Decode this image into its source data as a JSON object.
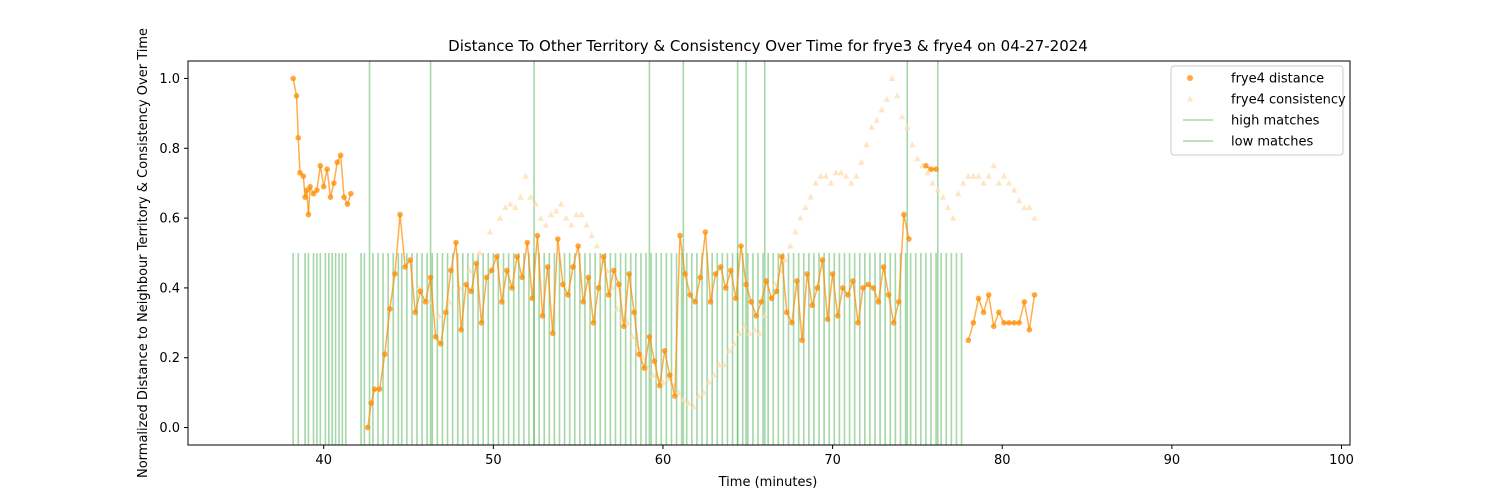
{
  "chart_data": {
    "type": "scatter",
    "title": "Distance To Other Territory & Consistency Over Time for frye3 & frye4 on 04-27-2024",
    "xlabel": "Time (minutes)",
    "ylabel": "Normalized Distance to Neighbour Territory & Consistency Over Time",
    "xlim": [
      32,
      100.5
    ],
    "ylim": [
      -0.05,
      1.05
    ],
    "xticks": [
      "40",
      "50",
      "60",
      "70",
      "80",
      "90",
      "100"
    ],
    "yticks": [
      "0.0",
      "0.2",
      "0.4",
      "0.6",
      "0.8",
      "1.0"
    ],
    "grid": false,
    "legend_position": "top-right",
    "colors": {
      "distance": "#ff8c00",
      "consistency": "#ffdcb0",
      "matches": "#4caf50"
    },
    "legend": [
      {
        "label": "frye4 distance",
        "kind": "dot-distance"
      },
      {
        "label": "frye4 consistency",
        "kind": "tri-consistency"
      },
      {
        "label": "high matches",
        "kind": "line-high"
      },
      {
        "label": "low matches",
        "kind": "line-low"
      }
    ],
    "series": [
      {
        "name": "frye4 distance",
        "x": [
          38.2,
          38.4,
          38.5,
          38.6,
          38.8,
          38.9,
          39.0,
          39.1,
          39.2,
          39.4,
          39.6,
          39.8,
          40.0,
          40.2,
          40.4,
          40.6,
          40.8,
          41.0,
          41.2,
          41.4,
          41.6,
          42.6,
          42.8,
          43.0,
          43.3,
          43.6,
          43.9,
          44.2,
          44.5,
          44.8,
          45.1,
          45.4,
          45.7,
          46.0,
          46.3,
          46.6,
          46.9,
          47.2,
          47.5,
          47.8,
          48.1,
          48.4,
          48.7,
          49.0,
          49.3,
          49.6,
          49.9,
          50.2,
          50.5,
          50.8,
          51.1,
          51.4,
          51.7,
          52.0,
          52.3,
          52.6,
          52.9,
          53.2,
          53.5,
          53.8,
          54.1,
          54.4,
          54.7,
          55.0,
          55.3,
          55.6,
          55.9,
          56.2,
          56.5,
          56.8,
          57.1,
          57.4,
          57.7,
          58.0,
          58.3,
          58.6,
          58.9,
          59.2,
          59.5,
          59.8,
          60.1,
          60.4,
          60.7,
          61.0,
          61.3,
          61.6,
          61.9,
          62.2,
          62.5,
          62.8,
          63.1,
          63.4,
          63.7,
          64.0,
          64.3,
          64.6,
          64.9,
          65.2,
          65.5,
          65.8,
          66.1,
          66.4,
          66.7,
          67.0,
          67.3,
          67.6,
          67.9,
          68.2,
          68.5,
          68.8,
          69.1,
          69.4,
          69.7,
          70.0,
          70.3,
          70.6,
          70.9,
          71.2,
          71.5,
          71.8,
          72.1,
          72.4,
          72.7,
          73.0,
          73.3,
          73.6,
          73.9,
          74.2,
          74.5,
          75.5,
          75.8,
          76.1,
          78.0,
          78.3,
          78.6,
          78.9,
          79.2,
          79.5,
          79.8,
          80.1,
          80.4,
          80.7,
          81.0,
          81.3,
          81.6,
          81.9
        ],
        "y": [
          1.0,
          0.95,
          0.83,
          0.73,
          0.72,
          0.66,
          0.68,
          0.61,
          0.69,
          0.67,
          0.68,
          0.75,
          0.69,
          0.74,
          0.66,
          0.7,
          0.76,
          0.78,
          0.66,
          0.64,
          0.67,
          0.0,
          0.07,
          0.11,
          0.11,
          0.21,
          0.34,
          0.44,
          0.61,
          0.46,
          0.48,
          0.33,
          0.39,
          0.36,
          0.43,
          0.26,
          0.24,
          0.33,
          0.45,
          0.53,
          0.28,
          0.41,
          0.39,
          0.47,
          0.3,
          0.43,
          0.45,
          0.49,
          0.36,
          0.45,
          0.4,
          0.49,
          0.43,
          0.53,
          0.37,
          0.55,
          0.32,
          0.46,
          0.27,
          0.54,
          0.41,
          0.38,
          0.46,
          0.52,
          0.36,
          0.43,
          0.3,
          0.4,
          0.49,
          0.38,
          0.45,
          0.41,
          0.29,
          0.44,
          0.33,
          0.21,
          0.17,
          0.26,
          0.19,
          0.12,
          0.22,
          0.15,
          0.09,
          0.55,
          0.44,
          0.38,
          0.36,
          0.43,
          0.56,
          0.36,
          0.44,
          0.46,
          0.4,
          0.45,
          0.37,
          0.52,
          0.41,
          0.36,
          0.32,
          0.36,
          0.42,
          0.37,
          0.39,
          0.49,
          0.33,
          0.3,
          0.42,
          0.25,
          0.44,
          0.35,
          0.4,
          0.48,
          0.31,
          0.44,
          0.32,
          0.4,
          0.38,
          0.42,
          0.3,
          0.4,
          0.41,
          0.4,
          0.36,
          0.46,
          0.38,
          0.3,
          0.36,
          0.61,
          0.54,
          0.75,
          0.74,
          0.74,
          0.25,
          0.3,
          0.37,
          0.33,
          0.38,
          0.29,
          0.33,
          0.3,
          0.3,
          0.3,
          0.3,
          0.36,
          0.28,
          0.38
        ]
      },
      {
        "name": "frye4 consistency",
        "x": [
          45.6,
          46.2,
          46.8,
          47.4,
          48.0,
          48.6,
          49.2,
          49.8,
          50.4,
          50.7,
          51.0,
          51.3,
          51.6,
          51.9,
          52.2,
          52.5,
          52.8,
          53.1,
          53.4,
          53.7,
          54.0,
          54.3,
          54.6,
          54.9,
          55.2,
          55.5,
          55.8,
          56.1,
          56.4,
          56.7,
          57.0,
          57.3,
          57.6,
          57.9,
          58.2,
          58.5,
          58.8,
          59.1,
          59.4,
          59.7,
          60.0,
          60.3,
          60.6,
          60.9,
          61.2,
          61.5,
          61.8,
          62.1,
          62.4,
          62.7,
          63.0,
          63.3,
          63.6,
          63.9,
          64.2,
          64.5,
          64.8,
          65.1,
          65.4,
          65.7,
          66.0,
          66.3,
          66.6,
          66.9,
          67.2,
          67.5,
          67.8,
          68.1,
          68.4,
          68.7,
          69.0,
          69.3,
          69.6,
          69.9,
          70.2,
          70.5,
          70.8,
          71.1,
          71.4,
          71.7,
          72.0,
          72.3,
          72.6,
          72.9,
          73.2,
          73.5,
          73.8,
          74.1,
          74.4,
          74.7,
          75.0,
          75.3,
          75.6,
          75.9,
          76.2,
          76.5,
          76.8,
          77.1,
          77.4,
          77.7,
          78.0,
          78.3,
          78.6,
          78.9,
          79.2,
          79.5,
          79.8,
          80.1,
          80.4,
          80.7,
          81.0,
          81.3,
          81.6,
          81.9
        ],
        "y": [
          0.4,
          0.36,
          0.32,
          0.36,
          0.4,
          0.45,
          0.5,
          0.56,
          0.6,
          0.63,
          0.64,
          0.63,
          0.66,
          0.72,
          0.66,
          0.64,
          0.6,
          0.58,
          0.61,
          0.62,
          0.64,
          0.6,
          0.58,
          0.61,
          0.61,
          0.58,
          0.55,
          0.52,
          0.48,
          0.45,
          0.4,
          0.34,
          0.31,
          0.3,
          0.26,
          0.23,
          0.2,
          0.17,
          0.15,
          0.14,
          0.13,
          0.14,
          0.12,
          0.1,
          0.08,
          0.07,
          0.06,
          0.09,
          0.1,
          0.13,
          0.15,
          0.18,
          0.18,
          0.22,
          0.24,
          0.27,
          0.29,
          0.27,
          0.28,
          0.27,
          0.32,
          0.37,
          0.41,
          0.45,
          0.48,
          0.52,
          0.56,
          0.6,
          0.63,
          0.66,
          0.7,
          0.72,
          0.72,
          0.7,
          0.73,
          0.73,
          0.72,
          0.7,
          0.72,
          0.76,
          0.81,
          0.86,
          0.88,
          0.91,
          0.94,
          1.0,
          0.95,
          0.89,
          0.86,
          0.81,
          0.77,
          0.75,
          0.73,
          0.7,
          0.68,
          0.66,
          0.63,
          0.6,
          0.67,
          0.7,
          0.72,
          0.72,
          0.72,
          0.7,
          0.72,
          0.75,
          0.7,
          0.72,
          0.7,
          0.68,
          0.65,
          0.63,
          0.63,
          0.6
        ]
      }
    ],
    "high_matches_x": [
      42.7,
      46.3,
      52.4,
      59.2,
      61.2,
      64.4,
      64.9,
      66.0,
      74.4,
      76.2
    ],
    "low_matches_x": [
      38.2,
      38.5,
      38.9,
      39.1,
      39.4,
      39.6,
      39.8,
      40.1,
      40.3,
      40.5,
      40.7,
      40.9,
      41.1,
      41.3,
      42.2,
      42.4,
      42.9,
      43.2,
      43.5,
      43.8,
      44.1,
      44.4,
      44.6,
      44.9,
      45.2,
      45.5,
      45.8,
      46.1,
      46.4,
      46.7,
      47.0,
      47.3,
      47.6,
      47.9,
      48.2,
      48.5,
      48.8,
      49.1,
      49.4,
      49.7,
      50.0,
      50.3,
      50.6,
      50.9,
      51.2,
      51.5,
      51.8,
      52.1,
      52.4,
      52.7,
      53.0,
      53.3,
      53.6,
      53.9,
      54.2,
      54.5,
      54.8,
      55.1,
      55.4,
      55.7,
      56.0,
      56.3,
      56.6,
      56.9,
      57.2,
      57.5,
      57.8,
      58.1,
      58.4,
      58.7,
      59.0,
      59.3,
      59.6,
      59.9,
      60.2,
      60.5,
      60.8,
      61.1,
      61.4,
      61.7,
      62.0,
      62.3,
      62.6,
      62.9,
      63.2,
      63.5,
      63.8,
      64.1,
      64.4,
      64.7,
      65.0,
      65.3,
      65.6,
      65.9,
      66.2,
      66.5,
      66.8,
      67.1,
      67.4,
      67.7,
      68.0,
      68.3,
      68.6,
      68.9,
      69.2,
      69.5,
      69.8,
      70.1,
      70.4,
      70.7,
      71.0,
      71.3,
      71.6,
      71.9,
      72.2,
      72.5,
      72.8,
      73.1,
      73.4,
      73.7,
      74.0,
      74.3,
      74.6,
      74.9,
      75.2,
      75.5,
      75.8,
      76.1,
      76.4,
      76.7,
      77.0,
      77.3,
      77.6
    ]
  }
}
